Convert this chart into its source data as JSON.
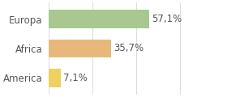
{
  "categories": [
    "America",
    "Africa",
    "Europa"
  ],
  "values": [
    7.1,
    35.7,
    57.1
  ],
  "labels": [
    "7,1%",
    "35,7%",
    "57,1%"
  ],
  "bar_colors": [
    "#f0d060",
    "#e8b87a",
    "#a8c890"
  ],
  "xlim": [
    0,
    100
  ],
  "background_color": "#ffffff",
  "label_fontsize": 8.5,
  "tick_fontsize": 8.5,
  "grid_color": "#dddddd",
  "text_color": "#555555"
}
